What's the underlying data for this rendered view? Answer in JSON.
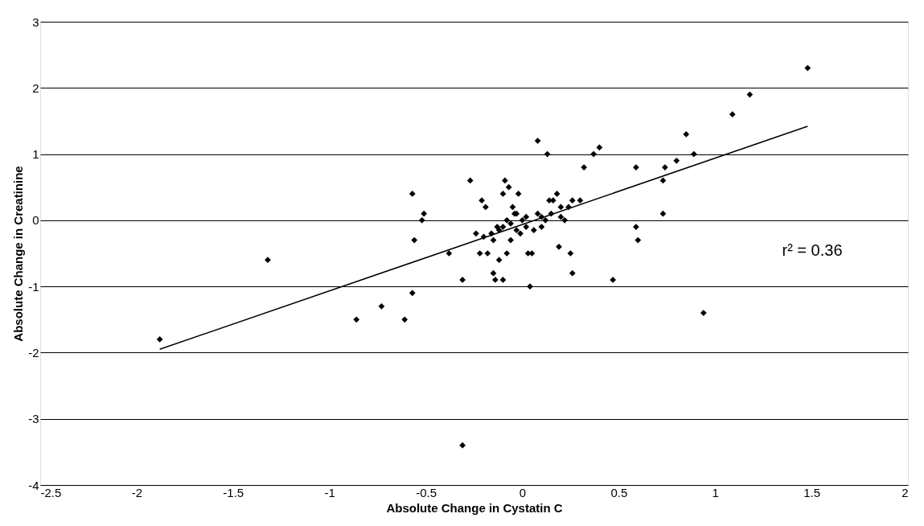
{
  "chart_data": {
    "type": "scatter",
    "xlabel": "Absolute Change in Cystatin C",
    "ylabel": "Absolute Change in Creatinine",
    "xlim": [
      -2.5,
      2
    ],
    "xticks": [
      -2.5,
      -2,
      -1.5,
      -1,
      -0.5,
      0,
      0.5,
      1,
      1.5,
      2
    ],
    "ylim": [
      -4,
      3
    ],
    "yticks": [
      -4,
      -3,
      -2,
      -1,
      0,
      1,
      2,
      3
    ],
    "grid": "y",
    "legend": false,
    "annotations": [
      "r² = 0.36"
    ],
    "series": [
      {
        "marker": "diamond",
        "color": "#000000",
        "x": [
          -1.88,
          -1.32,
          -0.86,
          -0.73,
          -0.61,
          -0.57,
          -0.57,
          -0.56,
          -0.52,
          -0.51,
          -0.38,
          -0.31,
          -0.31,
          -0.27,
          -0.24,
          -0.22,
          -0.21,
          -0.19,
          -0.2,
          -0.18,
          -0.15,
          -0.14,
          -0.15,
          -0.13,
          -0.12,
          -0.1,
          -0.1,
          -0.09,
          -0.07,
          -0.08,
          -0.06,
          -0.05,
          -0.04,
          -0.03,
          -0.02,
          -0.01,
          0,
          0.03,
          0.05,
          0.04,
          0.08,
          0.13,
          0.08,
          0.1,
          0.12,
          0.14,
          0.16,
          0.18,
          0.19,
          0.2,
          0.22,
          0.24,
          0.25,
          0.26,
          0.26,
          0.3,
          0.32,
          0.37,
          0.4,
          0.47,
          0.59,
          0.59,
          0.6,
          0.73,
          0.74,
          0.73,
          0.8,
          0.85,
          0.89,
          0.94,
          1.09,
          1.18,
          1.48,
          -0.1,
          -0.08,
          -0.06,
          0.02,
          0.06,
          0.1,
          0.15,
          0.2,
          -0.16,
          -0.12,
          0.02,
          -0.03
        ],
        "values": [
          -1.8,
          -0.6,
          -1.5,
          -1.3,
          -1.5,
          -1.1,
          0.4,
          -0.3,
          0,
          0.1,
          -0.5,
          -0.9,
          -3.4,
          0.6,
          -0.2,
          -0.5,
          0.3,
          0.2,
          -0.25,
          -0.5,
          -0.8,
          -0.9,
          -0.3,
          -0.1,
          -0.6,
          -0.9,
          0.4,
          0.6,
          0.5,
          -0.5,
          -0.3,
          0.2,
          0.1,
          -0.15,
          0.4,
          -0.2,
          0,
          -0.5,
          -0.5,
          -1,
          1.2,
          1,
          0.1,
          -0.1,
          0,
          0.3,
          0.3,
          0.4,
          -0.4,
          0.2,
          0,
          0.2,
          -0.5,
          0.3,
          -0.8,
          0.3,
          0.8,
          1,
          1.1,
          -0.9,
          0.8,
          -0.1,
          -0.3,
          0.6,
          0.8,
          0.1,
          0.9,
          1.3,
          1,
          -1.4,
          1.6,
          1.9,
          2.3,
          -0.1,
          0,
          -0.05,
          0.05,
          -0.15,
          0.05,
          0.1,
          0.05,
          -0.2,
          -0.15,
          -0.1,
          0.1
        ]
      },
      {
        "type": "line",
        "marker": "none",
        "line_style": "solid",
        "color": "#000000",
        "x": [
          -1.88,
          1.48
        ],
        "values": [
          -1.95,
          1.42
        ]
      }
    ]
  }
}
